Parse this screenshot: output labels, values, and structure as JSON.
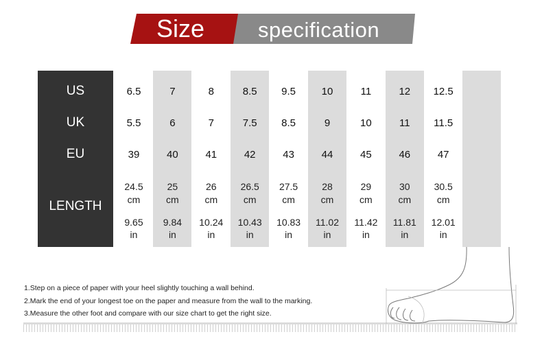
{
  "title": {
    "left": "Size",
    "right": "specification"
  },
  "colors": {
    "accent_red": "#a61212",
    "banner_grey": "#898989",
    "header_dark": "#333333",
    "shade": "#dcdcdc"
  },
  "row_labels": [
    "US",
    "UK",
    "EU",
    "LENGTH"
  ],
  "sizes": [
    {
      "us": "6.5",
      "uk": "5.5",
      "eu": "39",
      "cm": "24.5",
      "in": "9.65"
    },
    {
      "us": "7",
      "uk": "6",
      "eu": "40",
      "cm": "25",
      "in": "9.84"
    },
    {
      "us": "8",
      "uk": "7",
      "eu": "41",
      "cm": "26",
      "in": "10.24"
    },
    {
      "us": "8.5",
      "uk": "7.5",
      "eu": "42",
      "cm": "26.5",
      "in": "10.43"
    },
    {
      "us": "9.5",
      "uk": "8.5",
      "eu": "43",
      "cm": "27.5",
      "in": "10.83"
    },
    {
      "us": "10",
      "uk": "9",
      "eu": "44",
      "cm": "28",
      "in": "11.02"
    },
    {
      "us": "11",
      "uk": "10",
      "eu": "45",
      "cm": "29",
      "in": "11.42"
    },
    {
      "us": "12",
      "uk": "11",
      "eu": "46",
      "cm": "30",
      "in": "11.81"
    },
    {
      "us": "12.5",
      "uk": "11.5",
      "eu": "47",
      "cm": "30.5",
      "in": "12.01"
    }
  ],
  "units": {
    "cm": "cm",
    "in": "in"
  },
  "instructions": [
    "1.Step on a piece of paper with your heel slightly touching a wall behind.",
    "2.Mark the end of your longest toe on the paper and measure from the wall to the marking.",
    "3.Measure the other foot and compare with our size chart to get the right size."
  ]
}
